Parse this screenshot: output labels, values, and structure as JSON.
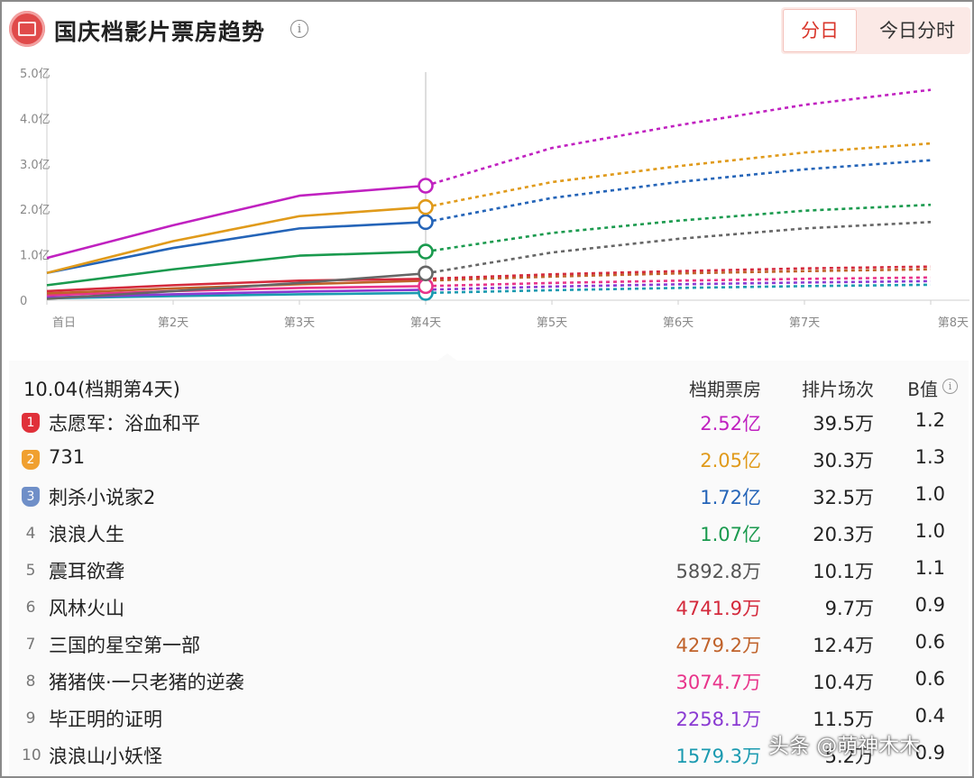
{
  "header": {
    "title": "国庆档影片票房趋势",
    "info_icon": "info-icon",
    "tab_day": "分日",
    "tab_hour": "今日分时"
  },
  "chart_data": {
    "type": "line",
    "categories": [
      "首日",
      "第2天",
      "第3天",
      "第4天",
      "第5天",
      "第6天",
      "第7天",
      "第8天"
    ],
    "y_ticks": [
      "0",
      "1.0亿",
      "2.0亿",
      "3.0亿",
      "4.0亿",
      "5.0亿"
    ],
    "ylim": [
      0,
      5.0
    ],
    "ylabel": "",
    "xlabel": "",
    "selected_category": "第4天",
    "actual_through_index": 3,
    "series": [
      {
        "name": "志愿军：浴血和平",
        "color": "#c021c0",
        "values": [
          0.93,
          1.65,
          2.3,
          2.52,
          3.35,
          3.85,
          4.3,
          4.63
        ]
      },
      {
        "name": "731",
        "color": "#e09a1a",
        "values": [
          0.6,
          1.3,
          1.85,
          2.05,
          2.6,
          2.95,
          3.25,
          3.45
        ]
      },
      {
        "name": "刺杀小说家2",
        "color": "#2464b8",
        "values": [
          0.6,
          1.15,
          1.58,
          1.72,
          2.25,
          2.6,
          2.88,
          3.08
        ]
      },
      {
        "name": "浪浪人生",
        "color": "#1a9a4e",
        "values": [
          0.33,
          0.68,
          0.98,
          1.07,
          1.48,
          1.75,
          1.97,
          2.1
        ]
      },
      {
        "name": "震耳欲聋",
        "color": "#666666",
        "values": [
          0.03,
          0.2,
          0.38,
          0.59,
          1.05,
          1.35,
          1.58,
          1.72
        ]
      },
      {
        "name": "风林火山",
        "color": "#d42a3c",
        "values": [
          0.2,
          0.33,
          0.43,
          0.47,
          0.57,
          0.64,
          0.7,
          0.74
        ]
      },
      {
        "name": "三国的星空第一部",
        "color": "#c0622a",
        "values": [
          0.15,
          0.26,
          0.35,
          0.43,
          0.52,
          0.59,
          0.64,
          0.68
        ]
      },
      {
        "name": "猪猪侠·一只老猪的逆袭",
        "color": "#e8338a",
        "values": [
          0.11,
          0.2,
          0.27,
          0.31,
          0.38,
          0.43,
          0.47,
          0.5
        ]
      },
      {
        "name": "毕正明的证明",
        "color": "#8a3ad2",
        "values": [
          0.06,
          0.13,
          0.19,
          0.23,
          0.3,
          0.35,
          0.39,
          0.42
        ]
      },
      {
        "name": "浪浪山小妖怪",
        "color": "#1a9ab0",
        "values": [
          0.04,
          0.09,
          0.13,
          0.16,
          0.22,
          0.27,
          0.31,
          0.34
        ]
      }
    ]
  },
  "table": {
    "date_label": "10.04(档期第4天)",
    "col_box": "档期票房",
    "col_shows": "排片场次",
    "col_bvalue": "B值",
    "rows": [
      {
        "rank": "1",
        "name": "志愿军：浴血和平",
        "box": "2.52亿",
        "shows": "39.5万",
        "b": "1.2",
        "color": "#c021c0",
        "badge_color": "#e0313a"
      },
      {
        "rank": "2",
        "name": "731",
        "box": "2.05亿",
        "shows": "30.3万",
        "b": "1.3",
        "color": "#e09a1a",
        "badge_color": "#f0a030"
      },
      {
        "rank": "3",
        "name": "刺杀小说家2",
        "box": "1.72亿",
        "shows": "32.5万",
        "b": "1.0",
        "color": "#2464b8",
        "badge_color": "#6f8fc8"
      },
      {
        "rank": "4",
        "name": "浪浪人生",
        "box": "1.07亿",
        "shows": "20.3万",
        "b": "1.0",
        "color": "#1a9a4e"
      },
      {
        "rank": "5",
        "name": "震耳欲聋",
        "box": "5892.8万",
        "shows": "10.1万",
        "b": "1.1",
        "color": "#555555"
      },
      {
        "rank": "6",
        "name": "风林火山",
        "box": "4741.9万",
        "shows": "9.7万",
        "b": "0.9",
        "color": "#d42a3c"
      },
      {
        "rank": "7",
        "name": "三国的星空第一部",
        "box": "4279.2万",
        "shows": "12.4万",
        "b": "0.6",
        "color": "#c0622a"
      },
      {
        "rank": "8",
        "name": "猪猪侠·一只老猪的逆袭",
        "box": "3074.7万",
        "shows": "10.4万",
        "b": "0.6",
        "color": "#e8338a"
      },
      {
        "rank": "9",
        "name": "毕正明的证明",
        "box": "2258.1万",
        "shows": "11.5万",
        "b": "0.4",
        "color": "#8a3ad2"
      },
      {
        "rank": "10",
        "name": "浪浪山小妖怪",
        "box": "1579.3万",
        "shows": "5.2万",
        "b": "0.9",
        "color": "#1a9ab0"
      }
    ]
  },
  "watermark": "头条 @萌神木木"
}
